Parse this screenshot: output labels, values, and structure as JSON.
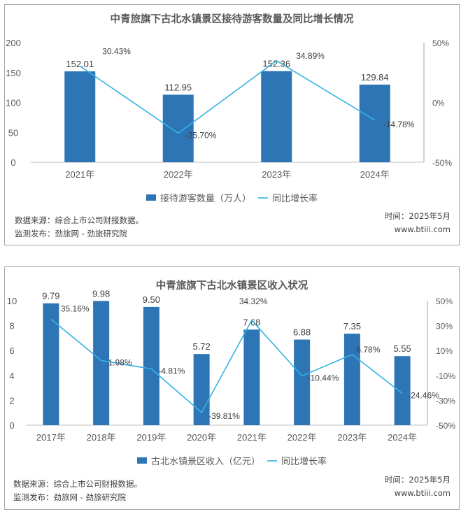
{
  "colors": {
    "bar": "#2e75b6",
    "line": "#35b3e3",
    "axis": "#bfbfbf",
    "text": "#595959"
  },
  "chart_data": [
    {
      "type": "bar",
      "title": "中青旅旗下古北水镇景区接待游客数量及同比增长情况",
      "categories": [
        "2021年",
        "2022年",
        "2023年",
        "2024年"
      ],
      "series": [
        {
          "name": "接待游客数量（万人）",
          "type": "bar",
          "axis": "left",
          "values": [
            152.01,
            112.95,
            152.36,
            129.84
          ],
          "labels": [
            "152.01",
            "112.95",
            "152.36",
            "129.84"
          ]
        },
        {
          "name": "同比增长率",
          "type": "line",
          "axis": "right",
          "values": [
            30.43,
            -25.7,
            34.89,
            -14.78
          ],
          "labels": [
            "30.43%",
            "-25.70%",
            "34.89%",
            "-14.78%"
          ]
        }
      ],
      "left_axis": {
        "ylim": [
          0,
          200
        ],
        "ticks": [
          "0",
          "50",
          "100",
          "150",
          "200"
        ]
      },
      "right_axis": {
        "ylim": [
          -50,
          50
        ],
        "ticks": [
          "-50%",
          "0%",
          "50%"
        ]
      },
      "legend": "bottom",
      "grid": false
    },
    {
      "type": "bar",
      "title": "中青旅旗下古北水镇景区收入状况",
      "categories": [
        "2017年",
        "2018年",
        "2019年",
        "2020年",
        "2021年",
        "2022年",
        "2023年",
        "2024年"
      ],
      "series": [
        {
          "name": "古北水镇景区收入（亿元）",
          "type": "bar",
          "axis": "left",
          "values": [
            9.79,
            9.98,
            9.5,
            5.72,
            7.68,
            6.88,
            7.35,
            5.55
          ],
          "labels": [
            "9.79",
            "9.98",
            "9.50",
            "5.72",
            "7.68",
            "6.88",
            "7.35",
            "5.55"
          ]
        },
        {
          "name": "同比增长率",
          "type": "line",
          "axis": "right",
          "values": [
            35.16,
            1.98,
            -4.81,
            -39.81,
            34.32,
            -10.44,
            6.78,
            -24.46
          ],
          "labels": [
            "35.16%",
            "1.98%",
            "-4.81%",
            "-39.81%",
            "34.32%",
            "-10.44%",
            "6.78%",
            "-24.46%"
          ]
        }
      ],
      "left_axis": {
        "ylim": [
          0,
          10
        ],
        "ticks": [
          "0",
          "2",
          "4",
          "6",
          "8",
          "10"
        ]
      },
      "right_axis": {
        "ylim": [
          -50,
          50
        ],
        "ticks": [
          "-50%",
          "-30%",
          "-10%",
          "10%",
          "30%",
          "50%"
        ]
      },
      "legend": "bottom",
      "grid": false
    }
  ],
  "footer": {
    "source": "数据来源：综合上市公司财报数据。",
    "publisher": "监测发布：劲旅网 - 劲旅研究院",
    "date": "时间：2025年5月",
    "site": "www.btiii.com"
  }
}
